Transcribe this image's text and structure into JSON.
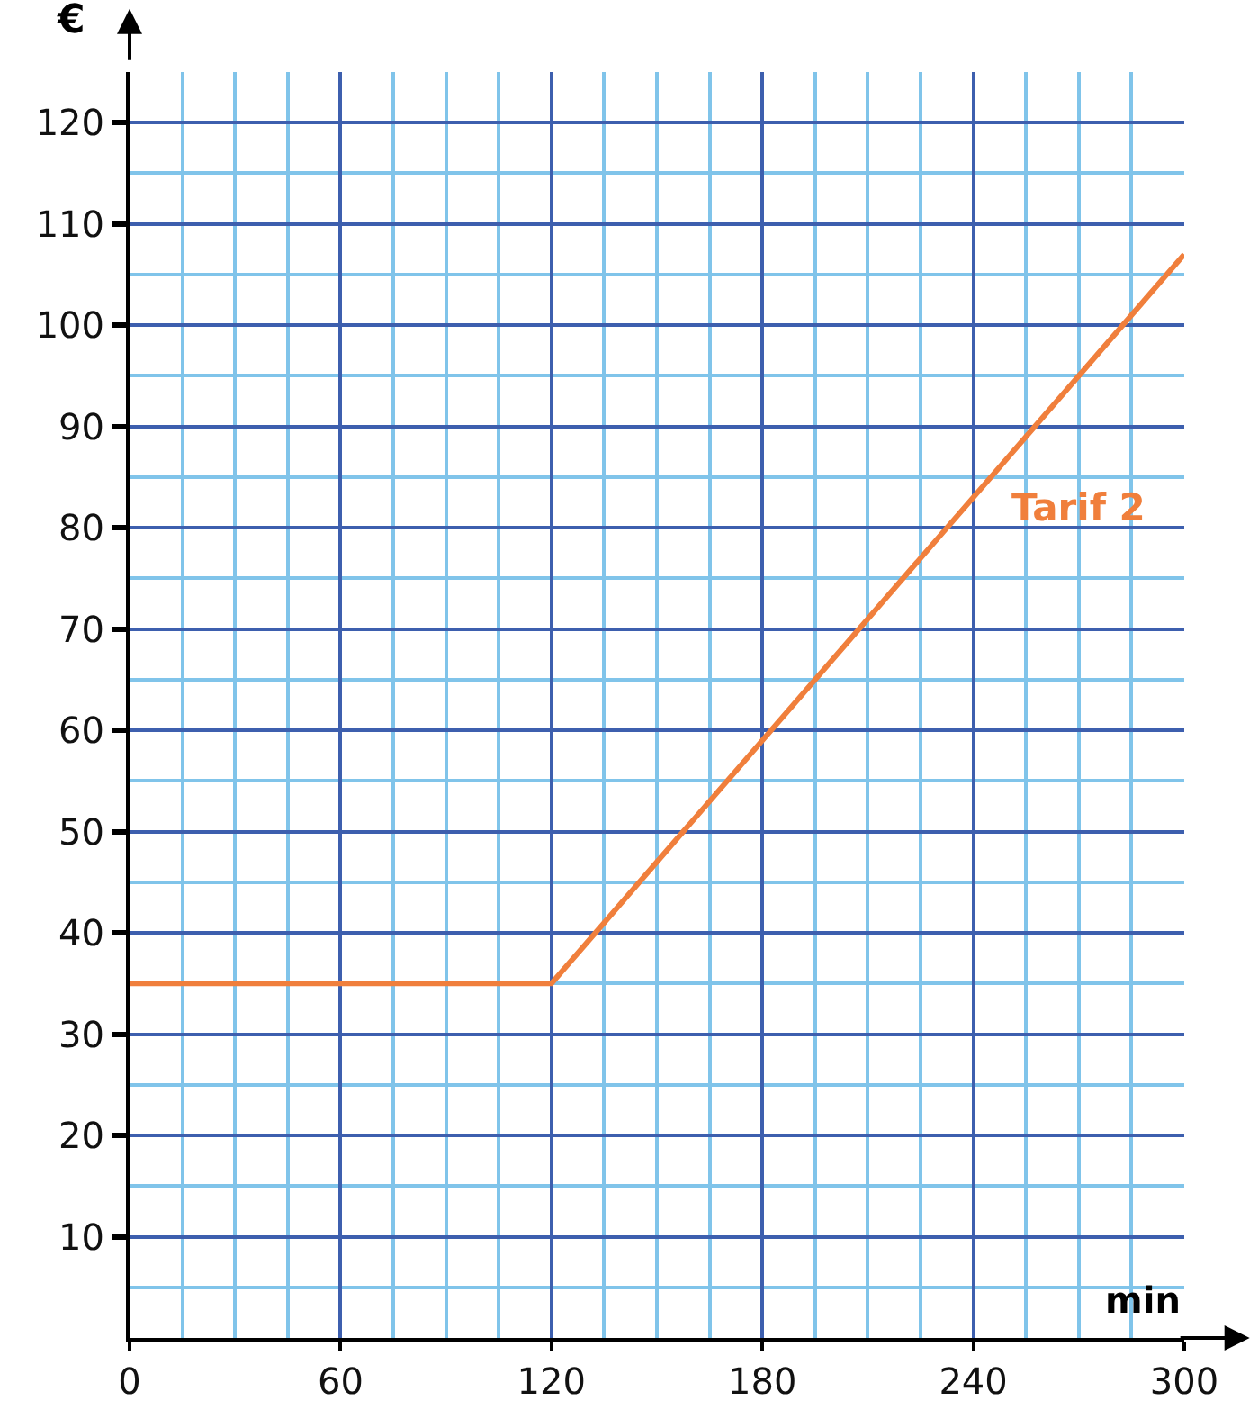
{
  "chart_data": {
    "type": "line",
    "xlabel": "min",
    "ylabel": "€",
    "x": [
      0,
      120,
      300
    ],
    "series": [
      {
        "name": "Tarif 2",
        "color": "#f07f3c",
        "values": [
          35,
          35,
          107
        ]
      }
    ],
    "xlim": [
      0,
      300
    ],
    "ylim": [
      0,
      125
    ],
    "xticks": [
      0,
      {
        "value": 15,
        "label": null
      },
      {
        "value": 30,
        "label": null
      },
      {
        "value": 45,
        "label": null
      },
      60,
      {
        "value": 75,
        "label": null
      },
      {
        "value": 90,
        "label": null
      },
      {
        "value": 105,
        "label": null
      },
      120,
      {
        "value": 135,
        "label": null
      },
      {
        "value": 150,
        "label": null
      },
      {
        "value": 165,
        "label": null
      },
      180,
      {
        "value": 195,
        "label": null
      },
      {
        "value": 210,
        "label": null
      },
      {
        "value": 225,
        "label": null
      },
      240,
      {
        "value": 255,
        "label": null
      },
      {
        "value": 270,
        "label": null
      },
      {
        "value": 285,
        "label": null
      },
      300
    ],
    "yticks": [
      {
        "value": 5,
        "label": null
      },
      10,
      {
        "value": 15,
        "label": null
      },
      20,
      {
        "value": 25,
        "label": null
      },
      30,
      {
        "value": 35,
        "label": null
      },
      40,
      {
        "value": 45,
        "label": null
      },
      50,
      {
        "value": 55,
        "label": null
      },
      60,
      {
        "value": 65,
        "label": null
      },
      70,
      {
        "value": 75,
        "label": null
      },
      80,
      {
        "value": 85,
        "label": null
      },
      90,
      {
        "value": 95,
        "label": null
      },
      100,
      {
        "value": 105,
        "label": null
      },
      110,
      {
        "value": 115,
        "label": null
      },
      120
    ],
    "grid": true,
    "marker": "none",
    "line_style": "solid",
    "legend": false
  }
}
